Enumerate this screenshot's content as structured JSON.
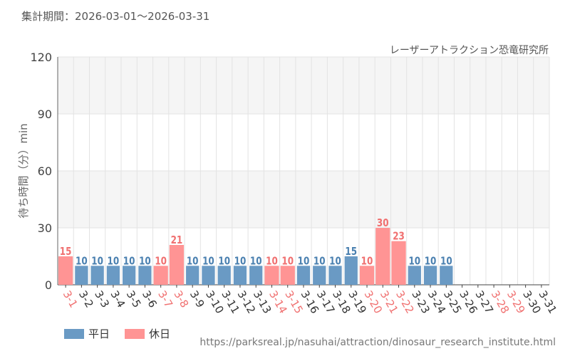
{
  "header": {
    "period": "集計期間：2026-03-01〜2026-03-31",
    "attraction": "レーザーアトラクション恐竜研究所"
  },
  "footer": {
    "url": "https://parksreal.jp/nasuhai/attraction/dinosaur_research_institute.html"
  },
  "legend": {
    "weekday": "平日",
    "holiday": "休日"
  },
  "colors": {
    "weekday_bar": "#6a9ac4",
    "holiday_bar": "#ff9494",
    "weekday_text": "#4a80b0",
    "holiday_text": "#f07070"
  },
  "chart_data": {
    "type": "bar",
    "ylabel": "待ち時間（分）min",
    "ylim": [
      0,
      120
    ],
    "yticks": [
      0,
      30,
      60,
      90,
      120
    ],
    "categories": [
      "3-1",
      "3-2",
      "3-3",
      "3-4",
      "3-5",
      "3-6",
      "3-7",
      "3-8",
      "3-9",
      "3-10",
      "3-11",
      "3-12",
      "3-13",
      "3-14",
      "3-15",
      "3-16",
      "3-17",
      "3-18",
      "3-19",
      "3-20",
      "3-21",
      "3-22",
      "3-23",
      "3-24",
      "3-25",
      "3-26",
      "3-27",
      "3-28",
      "3-29",
      "3-30",
      "3-31"
    ],
    "holiday": [
      1,
      0,
      0,
      0,
      0,
      0,
      1,
      1,
      0,
      0,
      0,
      0,
      0,
      1,
      1,
      0,
      0,
      0,
      0,
      1,
      1,
      1,
      0,
      0,
      0,
      0,
      0,
      1,
      1,
      0,
      0
    ],
    "values": [
      15,
      10,
      10,
      10,
      10,
      10,
      10,
      21,
      10,
      10,
      10,
      10,
      10,
      10,
      10,
      10,
      10,
      10,
      15,
      10,
      30,
      23,
      10,
      10,
      10,
      null,
      null,
      null,
      null,
      null,
      null
    ]
  }
}
